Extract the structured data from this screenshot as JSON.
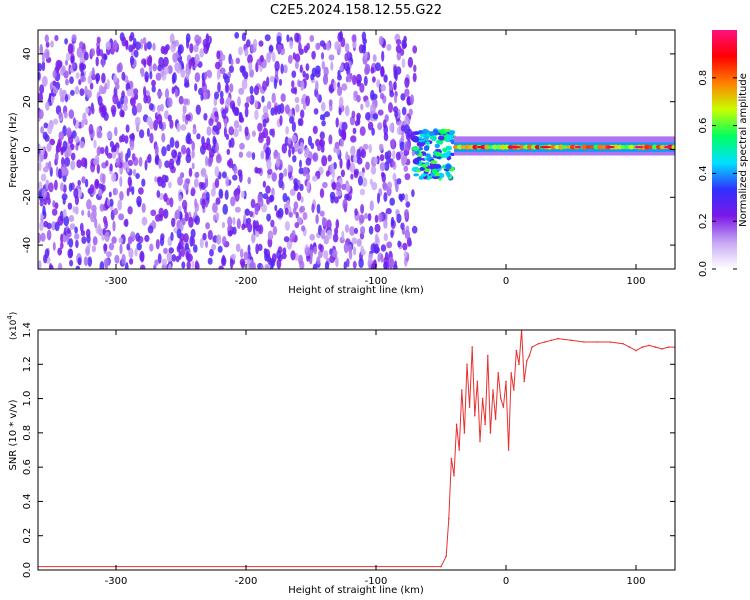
{
  "title": "C2E5.2024.158.12.55.G22",
  "chart_data": [
    {
      "type": "heatmap",
      "xlabel": "Height of straight line (km)",
      "ylabel": "Frequency (Hz)",
      "xlim": [
        -360,
        130
      ],
      "ylim": [
        -50,
        50
      ],
      "xticks": [
        -300,
        -200,
        -100,
        0,
        100
      ],
      "yticks": [
        -40,
        -20,
        0,
        20,
        40
      ],
      "colorbar": {
        "label": "Normalized spectral amplitude",
        "range": [
          0.0,
          1.0
        ],
        "ticks": [
          0.0,
          0.2,
          0.4,
          0.6,
          0.8
        ],
        "tick_labels": [
          "0.0",
          "0.2",
          "0.4",
          "0.6",
          "0.8"
        ],
        "colormap": [
          "#ffffff",
          "#c8a8f4",
          "#7a18e8",
          "#3030ff",
          "#00e0ff",
          "#00ff60",
          "#c8ff00",
          "#ff8000",
          "#ff0000",
          "#ff1080"
        ]
      },
      "regions": [
        {
          "x_range": [
            -360,
            -70
          ],
          "freq_range": [
            -50,
            48
          ],
          "amplitude": "0.0-0.3",
          "description_values": "broadband noise"
        },
        {
          "x_range": [
            -70,
            -40
          ],
          "freq_range": [
            -12,
            8
          ],
          "amplitude": "0.3-0.6"
        },
        {
          "x_range": [
            -40,
            130
          ],
          "freq_range": [
            -1,
            4
          ],
          "center_freq": 1,
          "amplitude": "0.5-1.0"
        }
      ]
    },
    {
      "type": "line",
      "xlabel": "Height of straight line (km)",
      "ylabel": "SNR (10 * v/v)",
      "y_multiplier": "(x10",
      "y_multiplier_exp": "4",
      "y_multiplier_close": ")",
      "xlim": [
        -360,
        130
      ],
      "ylim": [
        0,
        1.4
      ],
      "xticks": [
        -300,
        -200,
        -100,
        0,
        100
      ],
      "yticks": [
        0.0,
        0.2,
        0.4,
        0.6,
        0.8,
        1.0,
        1.2,
        1.4
      ],
      "ytick_labels": [
        "0.0",
        "0.2",
        "0.4",
        "0.6",
        "0.8",
        "1.0",
        "1.2",
        "1.4"
      ],
      "color": "#e83030",
      "series": [
        {
          "x": [
            -360,
            -300,
            -200,
            -100,
            -50,
            -46,
            -44,
            -42,
            -40,
            -38,
            -36,
            -34,
            -32,
            -30,
            -28,
            -26,
            -24,
            -22,
            -20,
            -18,
            -16,
            -14,
            -12,
            -10,
            -8,
            -6,
            -4,
            -2,
            0,
            2,
            4,
            6,
            8,
            10,
            12,
            14,
            16,
            18,
            20,
            25,
            30,
            35,
            40,
            50,
            60,
            70,
            80,
            90,
            95,
            100,
            105,
            110,
            115,
            120,
            125,
            130
          ],
          "y": [
            0.02,
            0.02,
            0.02,
            0.02,
            0.02,
            0.08,
            0.3,
            0.65,
            0.55,
            0.85,
            0.7,
            1.05,
            0.8,
            1.2,
            0.95,
            1.3,
            0.9,
            1.1,
            0.75,
            1.0,
            0.85,
            1.25,
            0.8,
            1.05,
            0.88,
            1.15,
            1.0,
            0.95,
            1.1,
            0.7,
            1.15,
            1.05,
            1.28,
            1.2,
            1.4,
            1.1,
            1.22,
            1.25,
            1.3,
            1.32,
            1.33,
            1.34,
            1.35,
            1.34,
            1.33,
            1.33,
            1.33,
            1.32,
            1.3,
            1.28,
            1.3,
            1.31,
            1.3,
            1.29,
            1.3,
            1.3
          ]
        }
      ]
    }
  ]
}
